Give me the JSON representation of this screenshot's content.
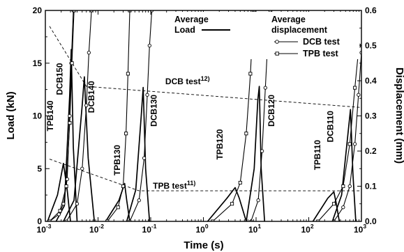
{
  "chart_data": {
    "type": "line",
    "xlabel": "Time (s)",
    "ylabel": "Load (kN)",
    "y2label": "Displacement (mm)",
    "xscale": "log",
    "xlim": [
      0.001,
      1000
    ],
    "ylim": [
      0,
      20
    ],
    "y2lim": [
      0,
      0.6
    ],
    "xticks": [
      {
        "value": 0.001,
        "base": "10",
        "exp": "-3"
      },
      {
        "value": 0.01,
        "base": "10",
        "exp": "-2"
      },
      {
        "value": 0.1,
        "base": "10",
        "exp": "-1"
      },
      {
        "value": 1,
        "base": "10",
        "exp": "0"
      },
      {
        "value": 10,
        "base": "10",
        "exp": "1"
      },
      {
        "value": 100,
        "base": "10",
        "exp": "2"
      },
      {
        "value": 1000,
        "base": "10",
        "exp": "3"
      }
    ],
    "yticks": [
      {
        "value": 0,
        "label": "0"
      },
      {
        "value": 5,
        "label": "5"
      },
      {
        "value": 10,
        "label": "10"
      },
      {
        "value": 15,
        "label": "15"
      },
      {
        "value": 20,
        "label": "20"
      }
    ],
    "y2ticks": [
      {
        "value": 0,
        "label": "0.0"
      },
      {
        "value": 0.1,
        "label": "0.1"
      },
      {
        "value": 0.2,
        "label": "0.2"
      },
      {
        "value": 0.3,
        "label": "0.3"
      },
      {
        "value": 0.4,
        "label": "0.4"
      },
      {
        "value": 0.5,
        "label": "0.5"
      },
      {
        "value": 0.6,
        "label": "0.6"
      }
    ],
    "legend": {
      "position": "top-right",
      "load_line1": "Average",
      "load_line2": "Load",
      "disp_line1": "Average",
      "disp_line2": "displacement",
      "dcb": "DCB test",
      "tpb": "TPB test"
    },
    "reference_lines": [
      {
        "name": "DCB test",
        "ref": "12)",
        "x": [
          0.0012,
          0.006,
          1000
        ],
        "y": [
          18.5,
          12.8,
          10.8
        ]
      },
      {
        "name": "TPB test",
        "ref": "11)",
        "x": [
          0.0012,
          0.06,
          1000
        ],
        "y": [
          5.9,
          2.9,
          2.9
        ]
      }
    ],
    "load_series": [
      {
        "name": "DCB150",
        "x": [
          0.0016,
          0.0023,
          0.0029,
          0.0031,
          0.0034,
          0.004
        ],
        "y": [
          0,
          1.5,
          12,
          16.3,
          7,
          0
        ]
      },
      {
        "name": "DCB140",
        "x": [
          0.0022,
          0.0035,
          0.005,
          0.0055,
          0.0065,
          0.0085
        ],
        "y": [
          0,
          2,
          11,
          13.7,
          6,
          0
        ]
      },
      {
        "name": "TPB140",
        "x": [
          0.0011,
          0.0017,
          0.0022,
          0.0026,
          0.003
        ],
        "y": [
          0,
          2.5,
          5.5,
          3,
          0
        ]
      },
      {
        "name": "TPB130",
        "x": [
          0.014,
          0.025,
          0.032,
          0.035,
          0.04
        ],
        "y": [
          0,
          2,
          3.6,
          2,
          0
        ]
      },
      {
        "name": "DCB130",
        "x": [
          0.035,
          0.052,
          0.066,
          0.072,
          0.08,
          0.095
        ],
        "y": [
          0,
          3,
          10,
          12.7,
          5,
          0
        ]
      },
      {
        "name": "TPB120",
        "x": [
          1.2,
          2.8,
          4,
          4.8,
          6.5
        ],
        "y": [
          0,
          2.2,
          3.2,
          2.2,
          0
        ]
      },
      {
        "name": "DCB120",
        "x": [
          6.5,
          9.2,
          10.8,
          11.5,
          12.5,
          14.5
        ],
        "y": [
          0,
          5,
          11.5,
          12.8,
          5,
          0
        ]
      },
      {
        "name": "TPB110",
        "x": [
          120,
          230,
          300,
          330,
          380
        ],
        "y": [
          0,
          2.2,
          2.8,
          1.8,
          0
        ]
      },
      {
        "name": "DCB110",
        "x": [
          280,
          420,
          560,
          620,
          690,
          780
        ],
        "y": [
          0,
          2.5,
          8.5,
          10.6,
          4.5,
          0
        ]
      }
    ],
    "displacement_series": [
      {
        "name": "DCB150",
        "test": "DCB",
        "x": [
          0.0012,
          0.0018,
          0.0022,
          0.0026,
          0.0029,
          0.0031,
          0.0034
        ],
        "y": [
          0,
          0.02,
          0.05,
          0.12,
          0.3,
          0.45,
          0.6
        ]
      },
      {
        "name": "TPB140",
        "test": "TPB",
        "x": [
          0.0012,
          0.0019,
          0.0025,
          0.0029,
          0.0032,
          0.0035
        ],
        "y": [
          0,
          0.03,
          0.1,
          0.28,
          0.45,
          0.6
        ]
      },
      {
        "name": "DCB140",
        "test": "DCB",
        "x": [
          0.0025,
          0.004,
          0.005,
          0.006,
          0.0067,
          0.0075
        ],
        "y": [
          0,
          0.05,
          0.15,
          0.33,
          0.48,
          0.6
        ]
      },
      {
        "name": "TPB130",
        "test": "TPB",
        "x": [
          0.015,
          0.024,
          0.03,
          0.034,
          0.037,
          0.04
        ],
        "y": [
          0,
          0.04,
          0.1,
          0.25,
          0.42,
          0.6
        ]
      },
      {
        "name": "DCB130",
        "test": "DCB",
        "x": [
          0.04,
          0.06,
          0.075,
          0.086,
          0.095,
          0.105
        ],
        "y": [
          0,
          0.06,
          0.18,
          0.36,
          0.5,
          0.6
        ]
      },
      {
        "name": "TPB120",
        "test": "TPB",
        "x": [
          1.5,
          3.5,
          5,
          6.5,
          7.8,
          9
        ],
        "y": [
          0,
          0.05,
          0.11,
          0.25,
          0.42,
          0.6
        ]
      },
      {
        "name": "DCB120",
        "test": "DCB",
        "x": [
          8,
          11,
          13,
          15,
          16.8,
          18.5
        ],
        "y": [
          0,
          0.06,
          0.2,
          0.38,
          0.52,
          0.6
        ]
      },
      {
        "name": "TPB110",
        "test": "TPB",
        "x": [
          150,
          300,
          450,
          600,
          750,
          900
        ],
        "y": [
          0,
          0.05,
          0.1,
          0.22,
          0.38,
          0.5
        ]
      },
      {
        "name": "DCB110",
        "test": "DCB",
        "x": [
          300,
          450,
          600,
          750,
          880,
          1000
        ],
        "y": [
          0,
          0.04,
          0.1,
          0.22,
          0.36,
          0.48
        ]
      }
    ],
    "annotations": [
      {
        "text": "DCB150",
        "x": 0.0021,
        "y": 13.5,
        "rotate": -90
      },
      {
        "text": "TPB140",
        "x": 0.0014,
        "y": 10.0,
        "rotate": -90
      },
      {
        "text": "DCB140",
        "x": 0.0085,
        "y": 11.8,
        "rotate": -90
      },
      {
        "text": "TPB130",
        "x": 0.026,
        "y": 5.8,
        "rotate": -90
      },
      {
        "text": "DCB130",
        "x": 0.13,
        "y": 10.5,
        "rotate": -90
      },
      {
        "text": "TPB120",
        "x": 2.3,
        "y": 7.3,
        "rotate": -90
      },
      {
        "text": "DCB120",
        "x": 22,
        "y": 10.5,
        "rotate": -90
      },
      {
        "text": "TPB110",
        "x": 165,
        "y": 6.3,
        "rotate": -90
      },
      {
        "text": "DCB110",
        "x": 290,
        "y": 9.0,
        "rotate": -90
      },
      {
        "text": "DCB test",
        "ref": "12)",
        "x": 0.5,
        "y": 13.0,
        "rotate": 0
      },
      {
        "text": "TPB test",
        "ref": "11)",
        "x": 0.28,
        "y": 3.1,
        "rotate": 0
      }
    ]
  }
}
